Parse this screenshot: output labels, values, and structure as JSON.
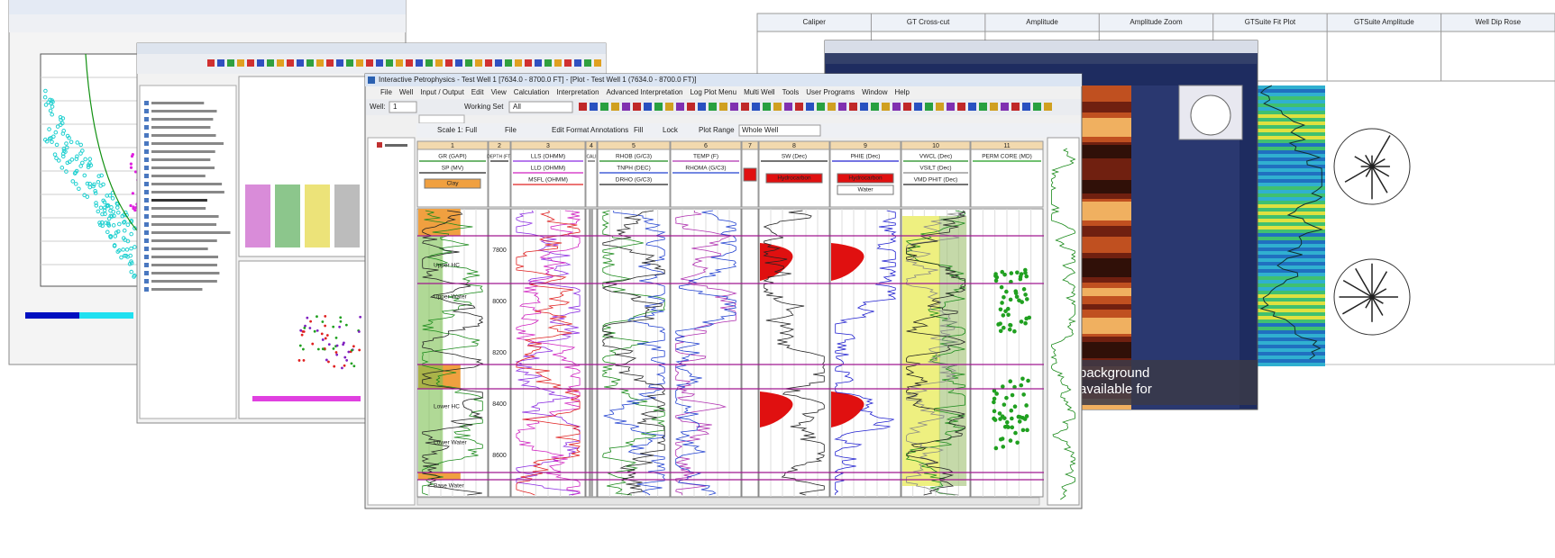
{
  "main_window": {
    "title": "Interactive Petrophysics - Test Well 1 [7634.0 - 8700.0 FT] - [Plot - Test Well 1 (7634.0 - 8700.0 FT)]",
    "menu": [
      "File",
      "Well",
      "Input / Output",
      "Edit",
      "View",
      "Calculation",
      "Interpretation",
      "Advanced Interpretation",
      "Log Plot Menu",
      "Multi Well",
      "Tools",
      "User Programs",
      "Window",
      "Help"
    ],
    "toolbar": {
      "well_label": "Well:",
      "well": "1",
      "working_set_label": "Working Set",
      "working_set": "All"
    },
    "plot_toolbar": [
      "Scale 1: Full",
      "File",
      "Edit Format",
      "Annotations",
      "Fill",
      "Lock",
      "Plot Range"
    ],
    "plot_range": "Whole Well",
    "tracks": [
      {
        "number": "1",
        "curves": [
          {
            "name": "GR (GAPI)",
            "color": "#1a8a1a"
          },
          {
            "name": "SP (MV)",
            "color": "#222222"
          }
        ],
        "fills": [
          {
            "name": "Clay",
            "color": "#f0a040"
          }
        ]
      },
      {
        "number": "2",
        "curves": [
          {
            "name": "DEPTH (FT)",
            "color": "#222222"
          }
        ],
        "fills": []
      },
      {
        "number": "3",
        "curves": [
          {
            "name": "LLS (OHMM)",
            "color": "#8a2be2"
          },
          {
            "name": "LLD (OHMM)",
            "color": "#d020c0"
          },
          {
            "name": "MSFL (OHMM)",
            "color": "#e02020"
          }
        ],
        "fills": []
      },
      {
        "number": "4",
        "curves": [
          {
            "name": "CALI",
            "color": "#555555"
          }
        ],
        "fills": []
      },
      {
        "number": "5",
        "curves": [
          {
            "name": "RHOB (G/C3)",
            "color": "#1a8a1a"
          },
          {
            "name": "TNPH (DEC)",
            "color": "#2040d0"
          },
          {
            "name": "DRHO (G/C3)",
            "color": "#222222"
          }
        ],
        "fills": []
      },
      {
        "number": "6",
        "curves": [
          {
            "name": "TEMP (F)",
            "color": "#b030b0"
          },
          {
            "name": "RHOMA (G/C3)",
            "color": "#2040d0"
          }
        ],
        "fills": []
      },
      {
        "number": "7",
        "curves": [],
        "fills": [
          {
            "name": "",
            "color": "#e01010"
          }
        ]
      },
      {
        "number": "8",
        "curves": [
          {
            "name": "SW (Dec)",
            "color": "#222222"
          }
        ],
        "fills": [
          {
            "name": "Hydrocarbon",
            "color": "#e01010"
          }
        ]
      },
      {
        "number": "9",
        "curves": [
          {
            "name": "PHIE (Dec)",
            "color": "#2020d0"
          }
        ],
        "fills": [
          {
            "name": "Hydrocarbon",
            "color": "#e01010"
          },
          {
            "name": "Water",
            "color": "#ffffff"
          }
        ]
      },
      {
        "number": "10",
        "curves": [
          {
            "name": "VWCL (Dec)",
            "color": "#1a8a1a"
          },
          {
            "name": "VSILT (Dec)",
            "color": "#888888"
          },
          {
            "name": "VMD PHIT (Dec)",
            "color": "#222222"
          }
        ],
        "fills": []
      },
      {
        "number": "11",
        "curves": [
          {
            "name": "PERM CORE (MD)",
            "color": "#1a9a1a"
          }
        ],
        "fills": []
      }
    ],
    "depths": [
      "7800",
      "8000",
      "8200",
      "8400",
      "8600"
    ],
    "zones": [
      "Upper HC",
      "Upper Water",
      "Lower HC",
      "Lower Water",
      "Base Water"
    ]
  },
  "image_window": {
    "caption": [
      "background",
      "available for"
    ]
  },
  "table_window": {
    "headers": [
      "Caliper",
      "GT Cross-cut",
      "Amplitude",
      "Amplitude Zoom",
      "GTSuite Fit Plot",
      "GTSuite Amplitude",
      "Well Dip Rose"
    ]
  }
}
